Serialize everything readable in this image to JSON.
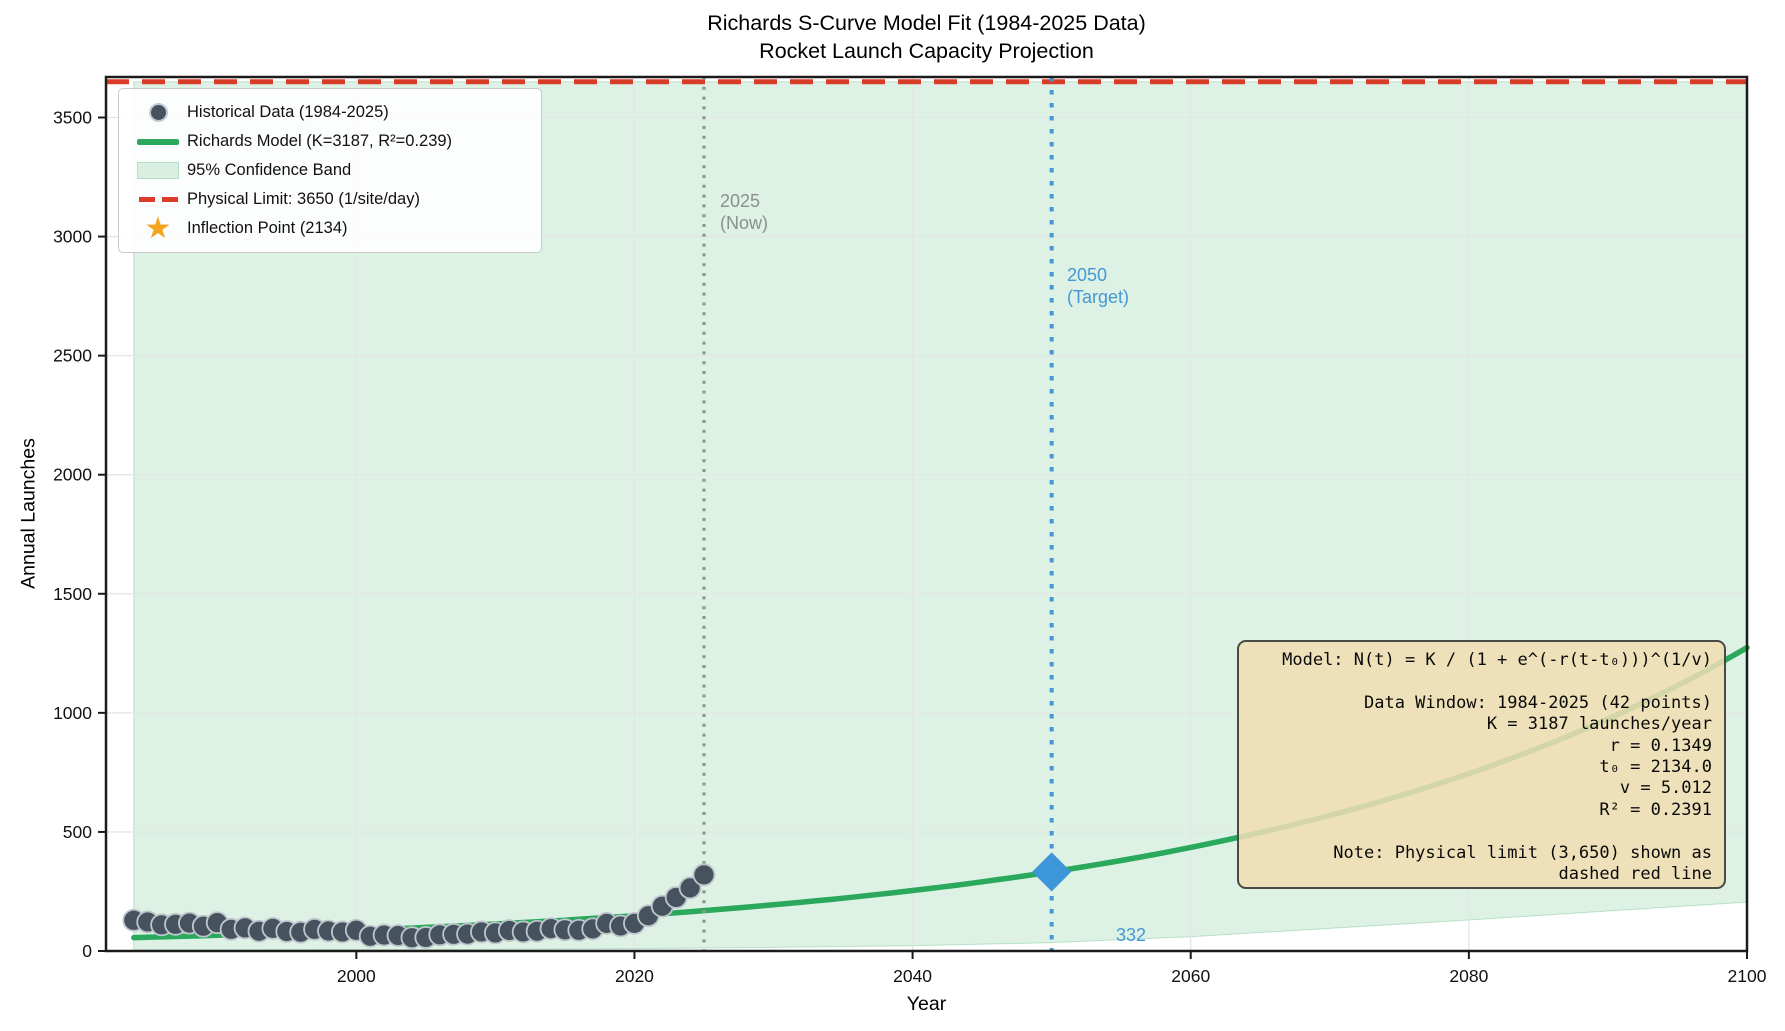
{
  "title": {
    "line1": "Richards S-Curve Model Fit (1984-2025 Data)",
    "line2": "Rocket Launch Capacity Projection"
  },
  "axes": {
    "xlabel": "Year",
    "ylabel": "Annual Launches"
  },
  "legend": {
    "items": [
      {
        "label": "Historical Data (1984-2025)",
        "swatch": "scatter-dot",
        "color": "#47525f"
      },
      {
        "label": "Richards Model (K=3187, R²=0.239)",
        "swatch": "line",
        "color": "#2aa85c"
      },
      {
        "label": "95% Confidence Band",
        "swatch": "patch",
        "color": "#d9efe2"
      },
      {
        "label": "Physical Limit: 3650 (1/site/day)",
        "swatch": "dashed-line",
        "color": "#d93d2a"
      },
      {
        "label": "Inflection Point (2134)",
        "swatch": "star",
        "color": "#f5a41f"
      }
    ]
  },
  "annotation_box": {
    "text": "Model: N(t) = K / (1 + e^(-r(t-t₀)))^(1/v)\n\nData Window: 1984-2025 (42 points)\nK = 3187 launches/year\nr = 0.1349\nt₀ = 2134.0\nv = 5.012\nR² = 0.2391\n\nNote: Physical limit (3,650) shown as\ndashed red line"
  },
  "markers": {
    "now_label": "2025\n(Now)",
    "target_label": "2050\n(Target)",
    "target_value_label": "332"
  },
  "chart_data": {
    "type": "line+scatter",
    "title": "Richards S-Curve Model Fit (1984-2025 Data) / Rocket Launch Capacity Projection",
    "xlabel": "Year",
    "ylabel": "Annual Launches",
    "xlim": [
      1982,
      2100
    ],
    "ylim": [
      0,
      3670
    ],
    "x_ticks": [
      2000,
      2020,
      2040,
      2060,
      2080,
      2100
    ],
    "y_ticks": [
      0,
      500,
      1000,
      1500,
      2000,
      2500,
      3000,
      3500
    ],
    "grid": true,
    "legend_position": "upper left",
    "colors": {
      "scatter": "#47525f",
      "scatter_edge": "#bfc6cc",
      "model_line": "#2aa85c",
      "band_fill": "rgba(46,168,92,0.16)",
      "band_edge": "rgba(46,168,92,0.28)",
      "limit_line": "#d93d2a",
      "now_line": "#8f968f",
      "target_line": "#4598d5",
      "target_marker": "#3d96d8",
      "grid_line": "#e3e7e3",
      "spine": "#1b1b1b"
    },
    "series": [
      {
        "name": "Historical Data (1984-2025)",
        "type": "scatter",
        "x": [
          1984,
          1985,
          1986,
          1987,
          1988,
          1989,
          1990,
          1991,
          1992,
          1993,
          1994,
          1995,
          1996,
          1997,
          1998,
          1999,
          2000,
          2001,
          2002,
          2003,
          2004,
          2005,
          2006,
          2007,
          2008,
          2009,
          2010,
          2011,
          2012,
          2013,
          2014,
          2015,
          2016,
          2017,
          2018,
          2019,
          2020,
          2021,
          2022,
          2023,
          2024,
          2025
        ],
        "y": [
          129,
          122,
          110,
          112,
          117,
          104,
          119,
          91,
          97,
          83,
          95,
          82,
          79,
          91,
          84,
          80,
          87,
          62,
          67,
          65,
          56,
          57,
          68,
          70,
          71,
          80,
          76,
          86,
          80,
          83,
          94,
          89,
          87,
          93,
          116,
          105,
          116,
          148,
          188,
          225,
          265,
          320
        ]
      },
      {
        "name": "Richards Model (K=3187, R²=0.239)",
        "type": "model-line",
        "model": {
          "K": 3187,
          "r": 0.1349,
          "t0": 2134.0,
          "v": 5.012,
          "r_squared": 0.2391
        },
        "t_range": [
          1984,
          2100
        ]
      },
      {
        "name": "95% Confidence Band",
        "type": "band",
        "upper_constant": 3650,
        "x": [
          1984,
          2000,
          2010,
          2020,
          2030,
          2040,
          2050,
          2060,
          2070,
          2080,
          2090,
          2100
        ],
        "lower": [
          3,
          5,
          7,
          10,
          15,
          22,
          35,
          60,
          95,
          130,
          168,
          205
        ]
      },
      {
        "name": "Physical Limit: 3650 (1/site/day)",
        "type": "hline",
        "y": 3650
      },
      {
        "name": "Inflection Point (2134)",
        "type": "star-marker",
        "t": 2134,
        "visible_in_plot": false
      }
    ],
    "vlines": [
      {
        "x": 2025,
        "label": "2025 (Now)",
        "style": "dotted",
        "color_key": "now_line"
      },
      {
        "x": 2050,
        "label": "2050 (Target)",
        "style": "dotted",
        "color_key": "target_line"
      }
    ],
    "point_markers": [
      {
        "x": 2050,
        "y": 332,
        "shape": "diamond",
        "label": "332"
      }
    ]
  }
}
